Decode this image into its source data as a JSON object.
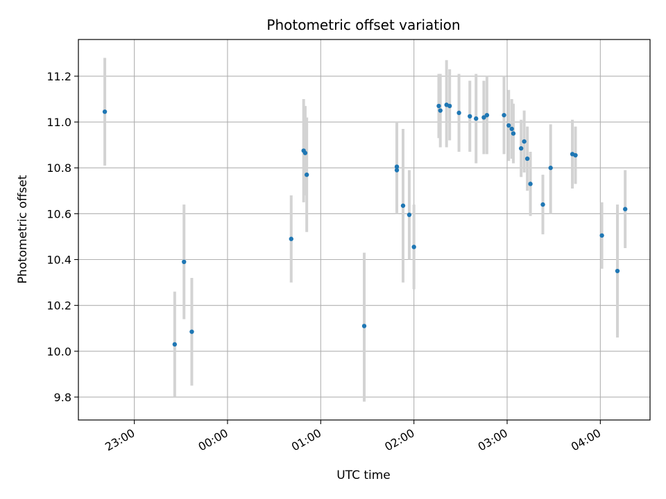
{
  "chart_data": {
    "type": "scatter",
    "title": "Photometric offset variation",
    "xlabel": "UTC time",
    "ylabel": "Photometric offset",
    "grid": true,
    "colors": {
      "point": "#1f77b4",
      "errorbar": "#d3d3d3",
      "grid": "#b0b0b0"
    },
    "xlim": [
      "22:24",
      "04:32"
    ],
    "ylim": [
      9.7,
      11.36
    ],
    "xticks": [
      "23:00",
      "00:00",
      "01:00",
      "02:00",
      "03:00",
      "04:00"
    ],
    "yticks": [
      "9.8",
      "10.0",
      "10.2",
      "10.4",
      "10.6",
      "10.8",
      "11.0",
      "11.2"
    ],
    "points": [
      {
        "t": "22:41",
        "y": 11.045,
        "lo": 10.81,
        "hi": 11.28
      },
      {
        "t": "23:26",
        "y": 10.03,
        "lo": 9.8,
        "hi": 10.26
      },
      {
        "t": "23:32",
        "y": 10.39,
        "lo": 10.14,
        "hi": 10.64
      },
      {
        "t": "23:37",
        "y": 10.085,
        "lo": 9.85,
        "hi": 10.32
      },
      {
        "t": "00:41",
        "y": 10.49,
        "lo": 10.3,
        "hi": 10.68
      },
      {
        "t": "00:49",
        "y": 10.875,
        "lo": 10.65,
        "hi": 11.1
      },
      {
        "t": "00:50",
        "y": 10.865,
        "lo": 10.68,
        "hi": 11.07
      },
      {
        "t": "00:51",
        "y": 10.77,
        "lo": 10.52,
        "hi": 11.02
      },
      {
        "t": "01:28",
        "y": 10.11,
        "lo": 9.78,
        "hi": 10.43
      },
      {
        "t": "01:49",
        "y": 10.79,
        "lo": 10.6,
        "hi": 10.99
      },
      {
        "t": "01:49",
        "y": 10.805,
        "lo": 10.61,
        "hi": 11.0
      },
      {
        "t": "01:53",
        "y": 10.635,
        "lo": 10.3,
        "hi": 10.97
      },
      {
        "t": "01:57",
        "y": 10.595,
        "lo": 10.4,
        "hi": 10.79
      },
      {
        "t": "02:00",
        "y": 10.455,
        "lo": 10.27,
        "hi": 10.64
      },
      {
        "t": "02:16",
        "y": 11.07,
        "lo": 10.93,
        "hi": 11.21
      },
      {
        "t": "02:17",
        "y": 11.05,
        "lo": 10.89,
        "hi": 11.21
      },
      {
        "t": "02:21",
        "y": 11.075,
        "lo": 10.89,
        "hi": 11.27
      },
      {
        "t": "02:23",
        "y": 11.07,
        "lo": 10.92,
        "hi": 11.23
      },
      {
        "t": "02:29",
        "y": 11.04,
        "lo": 10.87,
        "hi": 11.21
      },
      {
        "t": "02:36",
        "y": 11.025,
        "lo": 10.87,
        "hi": 11.18
      },
      {
        "t": "02:40",
        "y": 11.015,
        "lo": 10.82,
        "hi": 11.21
      },
      {
        "t": "02:45",
        "y": 11.02,
        "lo": 10.86,
        "hi": 11.18
      },
      {
        "t": "02:47",
        "y": 11.03,
        "lo": 10.86,
        "hi": 11.2
      },
      {
        "t": "02:58",
        "y": 11.03,
        "lo": 10.86,
        "hi": 11.2
      },
      {
        "t": "03:01",
        "y": 10.985,
        "lo": 10.83,
        "hi": 11.14
      },
      {
        "t": "03:03",
        "y": 10.97,
        "lo": 10.84,
        "hi": 11.1
      },
      {
        "t": "03:04",
        "y": 10.95,
        "lo": 10.82,
        "hi": 11.08
      },
      {
        "t": "03:09",
        "y": 10.885,
        "lo": 10.76,
        "hi": 11.01
      },
      {
        "t": "03:11",
        "y": 10.915,
        "lo": 10.78,
        "hi": 11.05
      },
      {
        "t": "03:13",
        "y": 10.84,
        "lo": 10.7,
        "hi": 10.98
      },
      {
        "t": "03:15",
        "y": 10.73,
        "lo": 10.59,
        "hi": 10.87
      },
      {
        "t": "03:23",
        "y": 10.64,
        "lo": 10.51,
        "hi": 10.77
      },
      {
        "t": "03:28",
        "y": 10.8,
        "lo": 10.6,
        "hi": 10.99
      },
      {
        "t": "03:42",
        "y": 10.86,
        "lo": 10.71,
        "hi": 11.01
      },
      {
        "t": "03:44",
        "y": 10.855,
        "lo": 10.73,
        "hi": 10.98
      },
      {
        "t": "04:01",
        "y": 10.505,
        "lo": 10.36,
        "hi": 10.65
      },
      {
        "t": "04:11",
        "y": 10.35,
        "lo": 10.06,
        "hi": 10.64
      },
      {
        "t": "04:16",
        "y": 10.62,
        "lo": 10.45,
        "hi": 10.79
      }
    ]
  }
}
